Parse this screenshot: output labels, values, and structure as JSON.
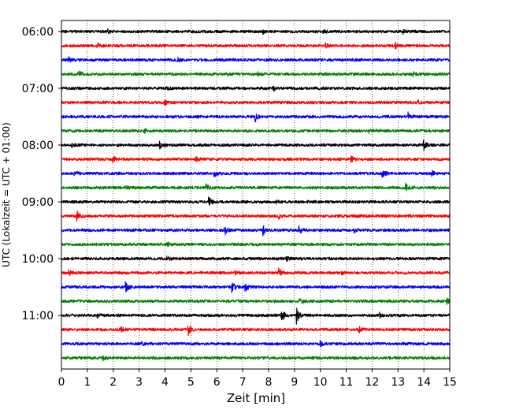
{
  "chart_data": {
    "type": "line",
    "title": "",
    "xlabel": "Zeit  [min]",
    "ylabel": "UTC (Lokalzeit = UTC + 01:00)",
    "xlim": [
      0,
      15
    ],
    "x_ticks": [
      "0",
      "1",
      "2",
      "3",
      "4",
      "5",
      "6",
      "7",
      "8",
      "9",
      "10",
      "11",
      "12",
      "13",
      "14",
      "15"
    ],
    "y_ticks": [
      {
        "label": "06:00",
        "row": 0
      },
      {
        "label": "07:00",
        "row": 4
      },
      {
        "label": "08:00",
        "row": 8
      },
      {
        "label": "09:00",
        "row": 12
      },
      {
        "label": "10:00",
        "row": 16
      },
      {
        "label": "11:00",
        "row": 20
      }
    ],
    "grid": "vertical dotted lines at each minute",
    "trace_colors": [
      "#000000",
      "#ff0000",
      "#0000ff",
      "#008000"
    ],
    "traces": [
      {
        "start": "06:00",
        "color": "#000000",
        "events": [
          {
            "t": 1.8,
            "a": 0.4
          },
          {
            "t": 7.8,
            "a": 0.3
          },
          {
            "t": 10.1,
            "a": 0.35
          },
          {
            "t": 13.2,
            "a": 0.3
          }
        ]
      },
      {
        "start": "06:15",
        "color": "#ff0000",
        "events": [
          {
            "t": 1.4,
            "a": 0.4
          },
          {
            "t": 10.2,
            "a": 0.4
          },
          {
            "t": 12.9,
            "a": 0.5
          }
        ]
      },
      {
        "start": "06:30",
        "color": "#0000ff",
        "events": [
          {
            "t": 0.3,
            "a": 0.4
          },
          {
            "t": 4.5,
            "a": 0.3
          }
        ]
      },
      {
        "start": "06:45",
        "color": "#008000",
        "events": [
          {
            "t": 0.7,
            "a": 0.6
          },
          {
            "t": 7.6,
            "a": 0.3
          },
          {
            "t": 13.6,
            "a": 0.3
          }
        ]
      },
      {
        "start": "07:00",
        "color": "#000000",
        "events": [
          {
            "t": 4.1,
            "a": 0.3
          },
          {
            "t": 8.2,
            "a": 0.3
          }
        ]
      },
      {
        "start": "07:15",
        "color": "#ff0000",
        "events": [
          {
            "t": 4.0,
            "a": 0.35
          },
          {
            "t": 13.8,
            "a": 0.3
          }
        ]
      },
      {
        "start": "07:30",
        "color": "#0000ff",
        "events": [
          {
            "t": 7.5,
            "a": 0.8
          },
          {
            "t": 13.4,
            "a": 0.7
          }
        ]
      },
      {
        "start": "07:45",
        "color": "#008000",
        "events": [
          {
            "t": 3.2,
            "a": 0.4
          },
          {
            "t": 11.9,
            "a": 0.3
          }
        ]
      },
      {
        "start": "08:00",
        "color": "#000000",
        "events": [
          {
            "t": 0.4,
            "a": 0.5
          },
          {
            "t": 3.8,
            "a": 0.6
          },
          {
            "t": 14.0,
            "a": 0.8
          }
        ]
      },
      {
        "start": "08:15",
        "color": "#ff0000",
        "events": [
          {
            "t": 2.0,
            "a": 0.5
          },
          {
            "t": 5.2,
            "a": 0.4
          },
          {
            "t": 11.2,
            "a": 0.5
          }
        ]
      },
      {
        "start": "08:30",
        "color": "#0000ff",
        "events": [
          {
            "t": 0.5,
            "a": 0.5
          },
          {
            "t": 5.9,
            "a": 0.6
          },
          {
            "t": 12.4,
            "a": 0.8
          },
          {
            "t": 14.3,
            "a": 0.5
          }
        ]
      },
      {
        "start": "08:45",
        "color": "#008000",
        "events": [
          {
            "t": 2.5,
            "a": 0.5
          },
          {
            "t": 5.6,
            "a": 0.6
          },
          {
            "t": 13.3,
            "a": 0.8
          }
        ]
      },
      {
        "start": "09:00",
        "color": "#000000",
        "events": [
          {
            "t": 5.7,
            "a": 0.9
          },
          {
            "t": 8.3,
            "a": 0.3
          }
        ]
      },
      {
        "start": "09:15",
        "color": "#ff0000",
        "events": [
          {
            "t": 0.6,
            "a": 0.9
          },
          {
            "t": 8.4,
            "a": 0.5
          }
        ]
      },
      {
        "start": "09:30",
        "color": "#0000ff",
        "events": [
          {
            "t": 6.3,
            "a": 1.0
          },
          {
            "t": 7.8,
            "a": 0.9
          },
          {
            "t": 9.2,
            "a": 0.7
          },
          {
            "t": 11.3,
            "a": 0.4
          }
        ]
      },
      {
        "start": "09:45",
        "color": "#008000",
        "events": [
          {
            "t": 4.1,
            "a": 0.3
          }
        ]
      },
      {
        "start": "10:00",
        "color": "#000000",
        "events": [
          {
            "t": 4.1,
            "a": 0.4
          },
          {
            "t": 8.7,
            "a": 0.3
          }
        ]
      },
      {
        "start": "10:15",
        "color": "#ff0000",
        "events": [
          {
            "t": 0.3,
            "a": 0.4
          },
          {
            "t": 6.7,
            "a": 0.6
          },
          {
            "t": 8.4,
            "a": 0.9
          },
          {
            "t": 10.8,
            "a": 0.4
          }
        ]
      },
      {
        "start": "10:30",
        "color": "#0000ff",
        "events": [
          {
            "t": 2.5,
            "a": 1.0
          },
          {
            "t": 6.6,
            "a": 1.0
          },
          {
            "t": 7.1,
            "a": 0.8
          }
        ]
      },
      {
        "start": "10:45",
        "color": "#008000",
        "events": [
          {
            "t": 9.2,
            "a": 0.5
          },
          {
            "t": 14.9,
            "a": 0.4
          }
        ]
      },
      {
        "start": "11:00",
        "color": "#000000",
        "events": [
          {
            "t": 1.4,
            "a": 0.4
          },
          {
            "t": 8.5,
            "a": 1.6
          },
          {
            "t": 9.1,
            "a": 1.4
          },
          {
            "t": 12.3,
            "a": 0.4
          }
        ]
      },
      {
        "start": "11:15",
        "color": "#ff0000",
        "events": [
          {
            "t": 2.3,
            "a": 0.4
          },
          {
            "t": 4.9,
            "a": 1.2
          },
          {
            "t": 11.5,
            "a": 0.5
          }
        ]
      },
      {
        "start": "11:30",
        "color": "#0000ff",
        "events": [
          {
            "t": 3.1,
            "a": 0.3
          },
          {
            "t": 10.0,
            "a": 0.4
          }
        ]
      },
      {
        "start": "11:45",
        "color": "#008000",
        "events": [
          {
            "t": 1.6,
            "a": 0.4
          }
        ]
      }
    ]
  }
}
